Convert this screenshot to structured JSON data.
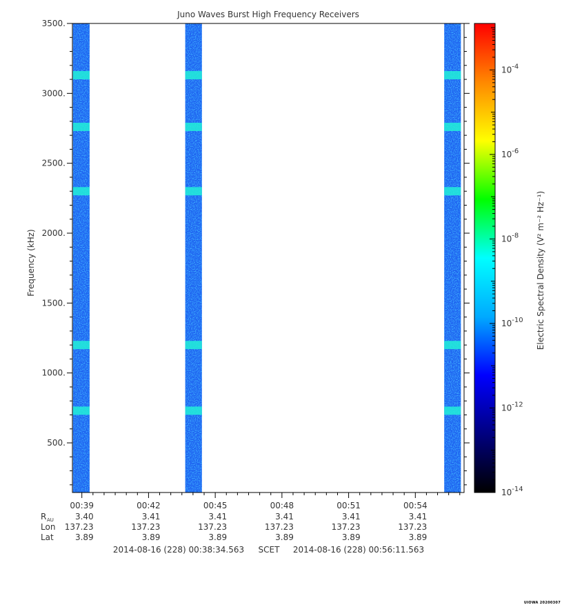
{
  "chart_data": {
    "type": "heatmap",
    "title": "Juno Waves Burst High Frequency Receivers",
    "ylabel": "Frequency (kHz)",
    "ylim": [
      145,
      3500
    ],
    "y_ticks": [
      {
        "value": 500,
        "label": "500."
      },
      {
        "value": 1000,
        "label": "1000."
      },
      {
        "value": 1500,
        "label": "1500."
      },
      {
        "value": 2000,
        "label": "2000."
      },
      {
        "value": 2500,
        "label": "2500."
      },
      {
        "value": 3000,
        "label": "3000."
      },
      {
        "value": 3500,
        "label": "3500."
      }
    ],
    "x_ticks": [
      {
        "minute": 39,
        "label": "00:39"
      },
      {
        "minute": 42,
        "label": "00:42"
      },
      {
        "minute": 45,
        "label": "00:45"
      },
      {
        "minute": 48,
        "label": "00:48"
      },
      {
        "minute": 51,
        "label": "00:51"
      },
      {
        "minute": 54,
        "label": "00:54"
      }
    ],
    "xlim_minutes": [
      38.575,
      56.193
    ],
    "data_intervals_minutes": [
      [
        38.6,
        39.35
      ],
      [
        43.65,
        44.4
      ],
      [
        55.3,
        56.05
      ]
    ],
    "bright_bands_khz": [
      3130,
      2760,
      2300,
      1200,
      730
    ],
    "colorbar": {
      "label": "Electric Spectral Density (V² m⁻² Hz⁻¹)",
      "scale": "log",
      "range_exp": [
        -14,
        -2.9
      ],
      "colors": [
        "#000000",
        "#000080",
        "#0000ff",
        "#00aaff",
        "#00ffff",
        "#00ff00",
        "#ffff00",
        "#ff8800",
        "#ff0000"
      ],
      "tick_labels": [
        {
          "exp": -14,
          "label": "10",
          "sup": "-14"
        },
        {
          "exp": -12,
          "label": "10",
          "sup": "-12"
        },
        {
          "exp": -10,
          "label": "10",
          "sup": "-10"
        },
        {
          "exp": -8,
          "label": "10",
          "sup": "-8"
        },
        {
          "exp": -6,
          "label": "10",
          "sup": "-6"
        },
        {
          "exp": -4,
          "label": "10",
          "sup": "-4"
        }
      ]
    },
    "ephemeris": {
      "rows": [
        {
          "label": "R",
          "sub": "AU",
          "values": [
            "3.40",
            "3.41",
            "3.41",
            "3.41",
            "3.41",
            "3.41"
          ]
        },
        {
          "label": "Lon",
          "sub": "",
          "values": [
            "137.23",
            "137.23",
            "137.23",
            "137.23",
            "137.23",
            "137.23"
          ]
        },
        {
          "label": "Lat",
          "sub": "",
          "values": [
            "3.89",
            "3.89",
            "3.89",
            "3.89",
            "3.89",
            "3.89"
          ]
        }
      ]
    },
    "time_range": {
      "start": "2014-08-16 (228) 00:38:34.563",
      "label": "SCET",
      "end": "2014-08-16 (228) 00:56:11.563"
    }
  },
  "footer": "UIOWA 20200307"
}
